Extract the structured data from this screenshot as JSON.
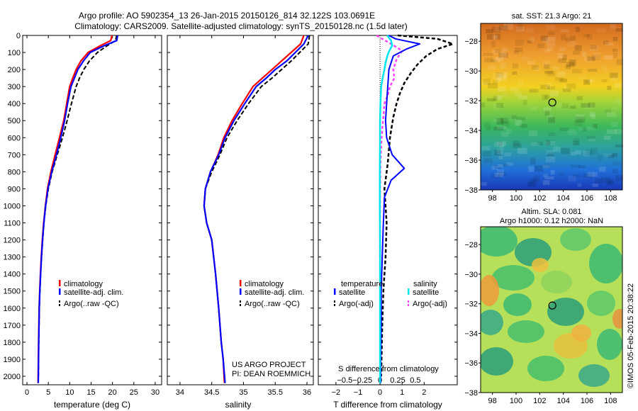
{
  "header": {
    "line1": "Argo profile: AO 5902354_13 26-Jan-2015 20150126_814 32.122S 103.0691E",
    "line2": "Climatology: CARS2009. Satellite-adjusted climatology: synTS_20150128.nc (1.5d later)"
  },
  "colors": {
    "climatology": "#ff0000",
    "satellite": "#0000ff",
    "argo": "#000000",
    "salinity_satellite": "#00e5ee",
    "salinity_argo": "#ff40ff"
  },
  "depth_ticks": [
    0,
    100,
    200,
    300,
    400,
    500,
    600,
    700,
    800,
    900,
    1000,
    1100,
    1200,
    1300,
    1400,
    1500,
    1600,
    1700,
    1800,
    1900,
    2000
  ],
  "panels": {
    "temperature": {
      "xlabel": "temperature (deg C)",
      "xticks": [
        "0",
        "5",
        "10",
        "15",
        "20",
        "25",
        "30"
      ],
      "legend": [
        "climatology",
        "satellite-adj. clim.",
        "Argo(..raw -QC)"
      ]
    },
    "salinity": {
      "xlabel": "salinity",
      "xticks": [
        "34",
        "34.5",
        "35",
        "35.5",
        "36"
      ],
      "legend": [
        "climatology",
        "satellite-adj. clim.",
        "Argo(..raw -QC)"
      ],
      "project_line1": "US ARGO PROJECT",
      "project_line2": "PI: DEAN ROEMMICH"
    },
    "difference": {
      "xlabel": "T difference from climatology",
      "top_label": "S difference from climatology",
      "s_ticks": [
        "-0.5",
        "-0.25",
        "0",
        "0.25",
        "0.5"
      ],
      "t_ticks": [
        "-2",
        "-1",
        "0",
        "1",
        "2"
      ],
      "legend_temperature_title": "temperature",
      "legend_salinity_title": "salinity",
      "legend_satellite": "satellite",
      "legend_argo": "Argo(-adj)"
    }
  },
  "maps": {
    "sst_title": "sat. SST: 21.3 Argo: 21",
    "sla_title1": "Altim. SLA: 0.081",
    "sla_title2": "Argo h1000: 0.12 h2000: NaN",
    "lon_ticks": [
      "98",
      "100",
      "102",
      "104",
      "106",
      "108"
    ],
    "lat_ticks": [
      "-28",
      "-30",
      "-32",
      "-34",
      "-36",
      "-38"
    ],
    "argo_position": {
      "lon": 103.07,
      "lat": -32.12
    }
  },
  "footer": {
    "stamp": "©IMOS 05-Feb-2015 20:38:22"
  },
  "chart_data": [
    {
      "type": "line",
      "name": "temperature profiles",
      "xlabel": "temperature (deg C)",
      "ylabel": "",
      "xlim": [
        -1,
        31.5
      ],
      "ylim": [
        2050,
        0
      ],
      "series": [
        {
          "name": "climatology",
          "x": [
            19.9,
            19.6,
            17.2,
            14.3,
            12.6,
            11.5,
            10.7,
            10.0,
            9.3,
            8.6,
            7.6,
            6.6,
            5.6,
            4.8,
            4.3,
            3.9,
            3.6,
            3.35,
            3.15,
            2.98,
            2.85,
            2.72,
            2.6
          ],
          "depth": [
            0,
            30,
            60,
            100,
            150,
            200,
            250,
            300,
            400,
            500,
            600,
            700,
            800,
            900,
            1000,
            1100,
            1200,
            1300,
            1400,
            1500,
            1600,
            1800,
            2040
          ]
        },
        {
          "name": "satellite-adj. clim.",
          "x": [
            21.2,
            21.0,
            18.1,
            14.8,
            13.2,
            11.9,
            11.1,
            10.3,
            9.5,
            8.8,
            7.9,
            6.9,
            5.8,
            4.9,
            4.35,
            3.95,
            3.65,
            3.4,
            3.2,
            3.02,
            2.88,
            2.75,
            2.65
          ],
          "depth": [
            0,
            30,
            60,
            100,
            150,
            200,
            250,
            300,
            400,
            500,
            600,
            700,
            800,
            900,
            1000,
            1100,
            1200,
            1300,
            1400,
            1500,
            1600,
            1800,
            2040
          ]
        },
        {
          "name": "Argo(..raw -QC)",
          "x": [
            21.0,
            20.7,
            18.8,
            16.5,
            14.6,
            13.3,
            12.3,
            11.5,
            10.4,
            9.4,
            8.3,
            7.1,
            5.9,
            5.0,
            4.4,
            3.98,
            3.68,
            3.42,
            3.2,
            3.03,
            2.9,
            2.77,
            2.68
          ],
          "depth": [
            0,
            30,
            60,
            100,
            150,
            200,
            250,
            300,
            400,
            500,
            600,
            700,
            800,
            900,
            1000,
            1100,
            1200,
            1300,
            1400,
            1500,
            1600,
            1800,
            2000
          ]
        }
      ]
    },
    {
      "type": "line",
      "name": "salinity profiles",
      "xlabel": "salinity",
      "ylabel": "",
      "xlim": [
        33.8,
        36.1
      ],
      "ylim": [
        2050,
        0
      ],
      "series": [
        {
          "name": "climatology",
          "x": [
            35.95,
            35.9,
            35.6,
            35.45,
            35.3,
            35.15,
            34.98,
            34.82,
            34.69,
            34.6,
            34.48,
            34.4,
            34.38,
            34.42,
            34.5,
            34.56,
            34.61,
            34.65,
            34.68,
            34.7
          ],
          "depth": [
            0,
            50,
            150,
            200,
            250,
            300,
            400,
            500,
            600,
            700,
            800,
            900,
            1000,
            1100,
            1200,
            1400,
            1600,
            1800,
            1900,
            2040
          ]
        },
        {
          "name": "satellite-adj. clim.",
          "x": [
            36.02,
            35.95,
            35.68,
            35.5,
            35.36,
            35.2,
            35.02,
            34.85,
            34.71,
            34.61,
            34.48,
            34.4,
            34.38,
            34.42,
            34.5,
            34.56,
            34.61,
            34.65,
            34.68,
            34.71
          ],
          "depth": [
            0,
            50,
            150,
            200,
            250,
            300,
            400,
            500,
            600,
            700,
            800,
            900,
            1000,
            1100,
            1200,
            1400,
            1600,
            1800,
            1900,
            2040
          ]
        },
        {
          "name": "Argo(..raw -QC)",
          "x": [
            36.04,
            36.02,
            35.75,
            35.6,
            35.45,
            35.28,
            35.08,
            34.9,
            34.74,
            34.63,
            34.5,
            34.4,
            34.38,
            34.42,
            34.5,
            34.56,
            34.61,
            34.65,
            34.68,
            34.7
          ],
          "depth": [
            0,
            50,
            150,
            200,
            250,
            300,
            400,
            500,
            600,
            700,
            800,
            900,
            1000,
            1100,
            1200,
            1400,
            1600,
            1800,
            1900,
            2000
          ]
        }
      ]
    },
    {
      "type": "line",
      "name": "difference from climatology",
      "xlabel": "T difference from climatology",
      "ylabel": "",
      "xlim": [
        -2.8,
        3.5
      ],
      "ylim": [
        2050,
        0
      ],
      "series": [
        {
          "name": "temperature satellite",
          "x": [
            0.4,
            0.7,
            1.8,
            1.2,
            0.6,
            0.4,
            0.35,
            0.3,
            0.25,
            0.3,
            0.55,
            1.1,
            0.5,
            0.2,
            0.15,
            0.1,
            0.05,
            0.05,
            0.03,
            0.03
          ],
          "depth": [
            0,
            20,
            50,
            80,
            120,
            200,
            300,
            400,
            500,
            600,
            700,
            780,
            850,
            950,
            1100,
            1300,
            1500,
            1700,
            1900,
            2040
          ]
        },
        {
          "name": "temperature Argo(-adj)",
          "x": [
            0.8,
            2.6,
            3.3,
            2.6,
            2.1,
            1.7,
            1.4,
            1.1,
            0.9,
            0.75,
            0.6,
            0.45,
            0.35,
            0.2,
            0.3,
            0.25,
            0.15,
            0.1,
            0.05
          ],
          "depth": [
            0,
            20,
            50,
            80,
            120,
            170,
            220,
            280,
            340,
            400,
            480,
            600,
            750,
            900,
            1100,
            1300,
            1500,
            1700,
            2000
          ]
        },
        {
          "name": "salinity satellite",
          "x": [
            0.32,
            0.5,
            0.55,
            0.42,
            0.33,
            0.25,
            0.2,
            0.12,
            0.05,
            0.02,
            0.0,
            0.0,
            -0.01,
            -0.01,
            0.0,
            0.0,
            0.0,
            0.0
          ],
          "depth": [
            0,
            30,
            60,
            90,
            120,
            160,
            200,
            250,
            300,
            400,
            500,
            600,
            800,
            1000,
            1200,
            1500,
            1800,
            2040
          ]
        },
        {
          "name": "salinity Argo(-adj)",
          "x": [
            -0.15,
            0.1,
            0.5,
            1.0,
            0.75,
            0.6,
            0.65,
            0.45,
            0.35,
            0.2,
            0.15,
            0.1,
            0.05,
            0.02,
            0.0,
            0.0,
            0.0
          ],
          "depth": [
            0,
            20,
            50,
            90,
            140,
            200,
            250,
            300,
            350,
            400,
            480,
            550,
            650,
            750,
            900,
            1100,
            1300
          ]
        }
      ]
    }
  ]
}
